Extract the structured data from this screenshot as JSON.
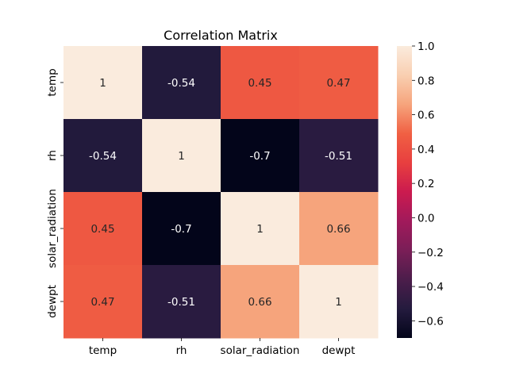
{
  "chart_data": {
    "type": "heatmap",
    "title": "Correlation Matrix",
    "xlabel": "",
    "ylabel": "",
    "x_categories": [
      "temp",
      "rh",
      "solar_radiation",
      "dewpt"
    ],
    "y_categories": [
      "temp",
      "rh",
      "solar_radiation",
      "dewpt"
    ],
    "values": [
      [
        1,
        -0.54,
        0.45,
        0.47
      ],
      [
        -0.54,
        1,
        -0.7,
        -0.51
      ],
      [
        0.45,
        -0.7,
        1,
        0.66
      ],
      [
        0.47,
        -0.51,
        0.66,
        1
      ]
    ],
    "value_labels": [
      [
        "1",
        "-0.54",
        "0.45",
        "0.47"
      ],
      [
        "-0.54",
        "1",
        "-0.7",
        "-0.51"
      ],
      [
        "0.45",
        "-0.7",
        "1",
        "0.66"
      ],
      [
        "0.47",
        "-0.51",
        "0.66",
        "1"
      ]
    ],
    "colorbar": {
      "min": -0.7,
      "max": 1.0,
      "ticks": [
        1.0,
        0.8,
        0.6,
        0.4,
        0.2,
        0.0,
        -0.2,
        -0.4,
        -0.6
      ],
      "tick_labels": [
        "1.0",
        "0.8",
        "0.6",
        "0.4",
        "0.2",
        "0.0",
        "−0.2",
        "−0.4",
        "−0.6"
      ]
    },
    "colormap": "rocket",
    "colormap_stops": [
      "#03051a",
      "#241b3e",
      "#4c1d4b",
      "#7a1e57",
      "#a11a5b",
      "#cb1b4f",
      "#e83f3f",
      "#f06043",
      "#f6a47c",
      "#f9cfb1",
      "#faebdd"
    ],
    "legend": "colorbar-right"
  }
}
